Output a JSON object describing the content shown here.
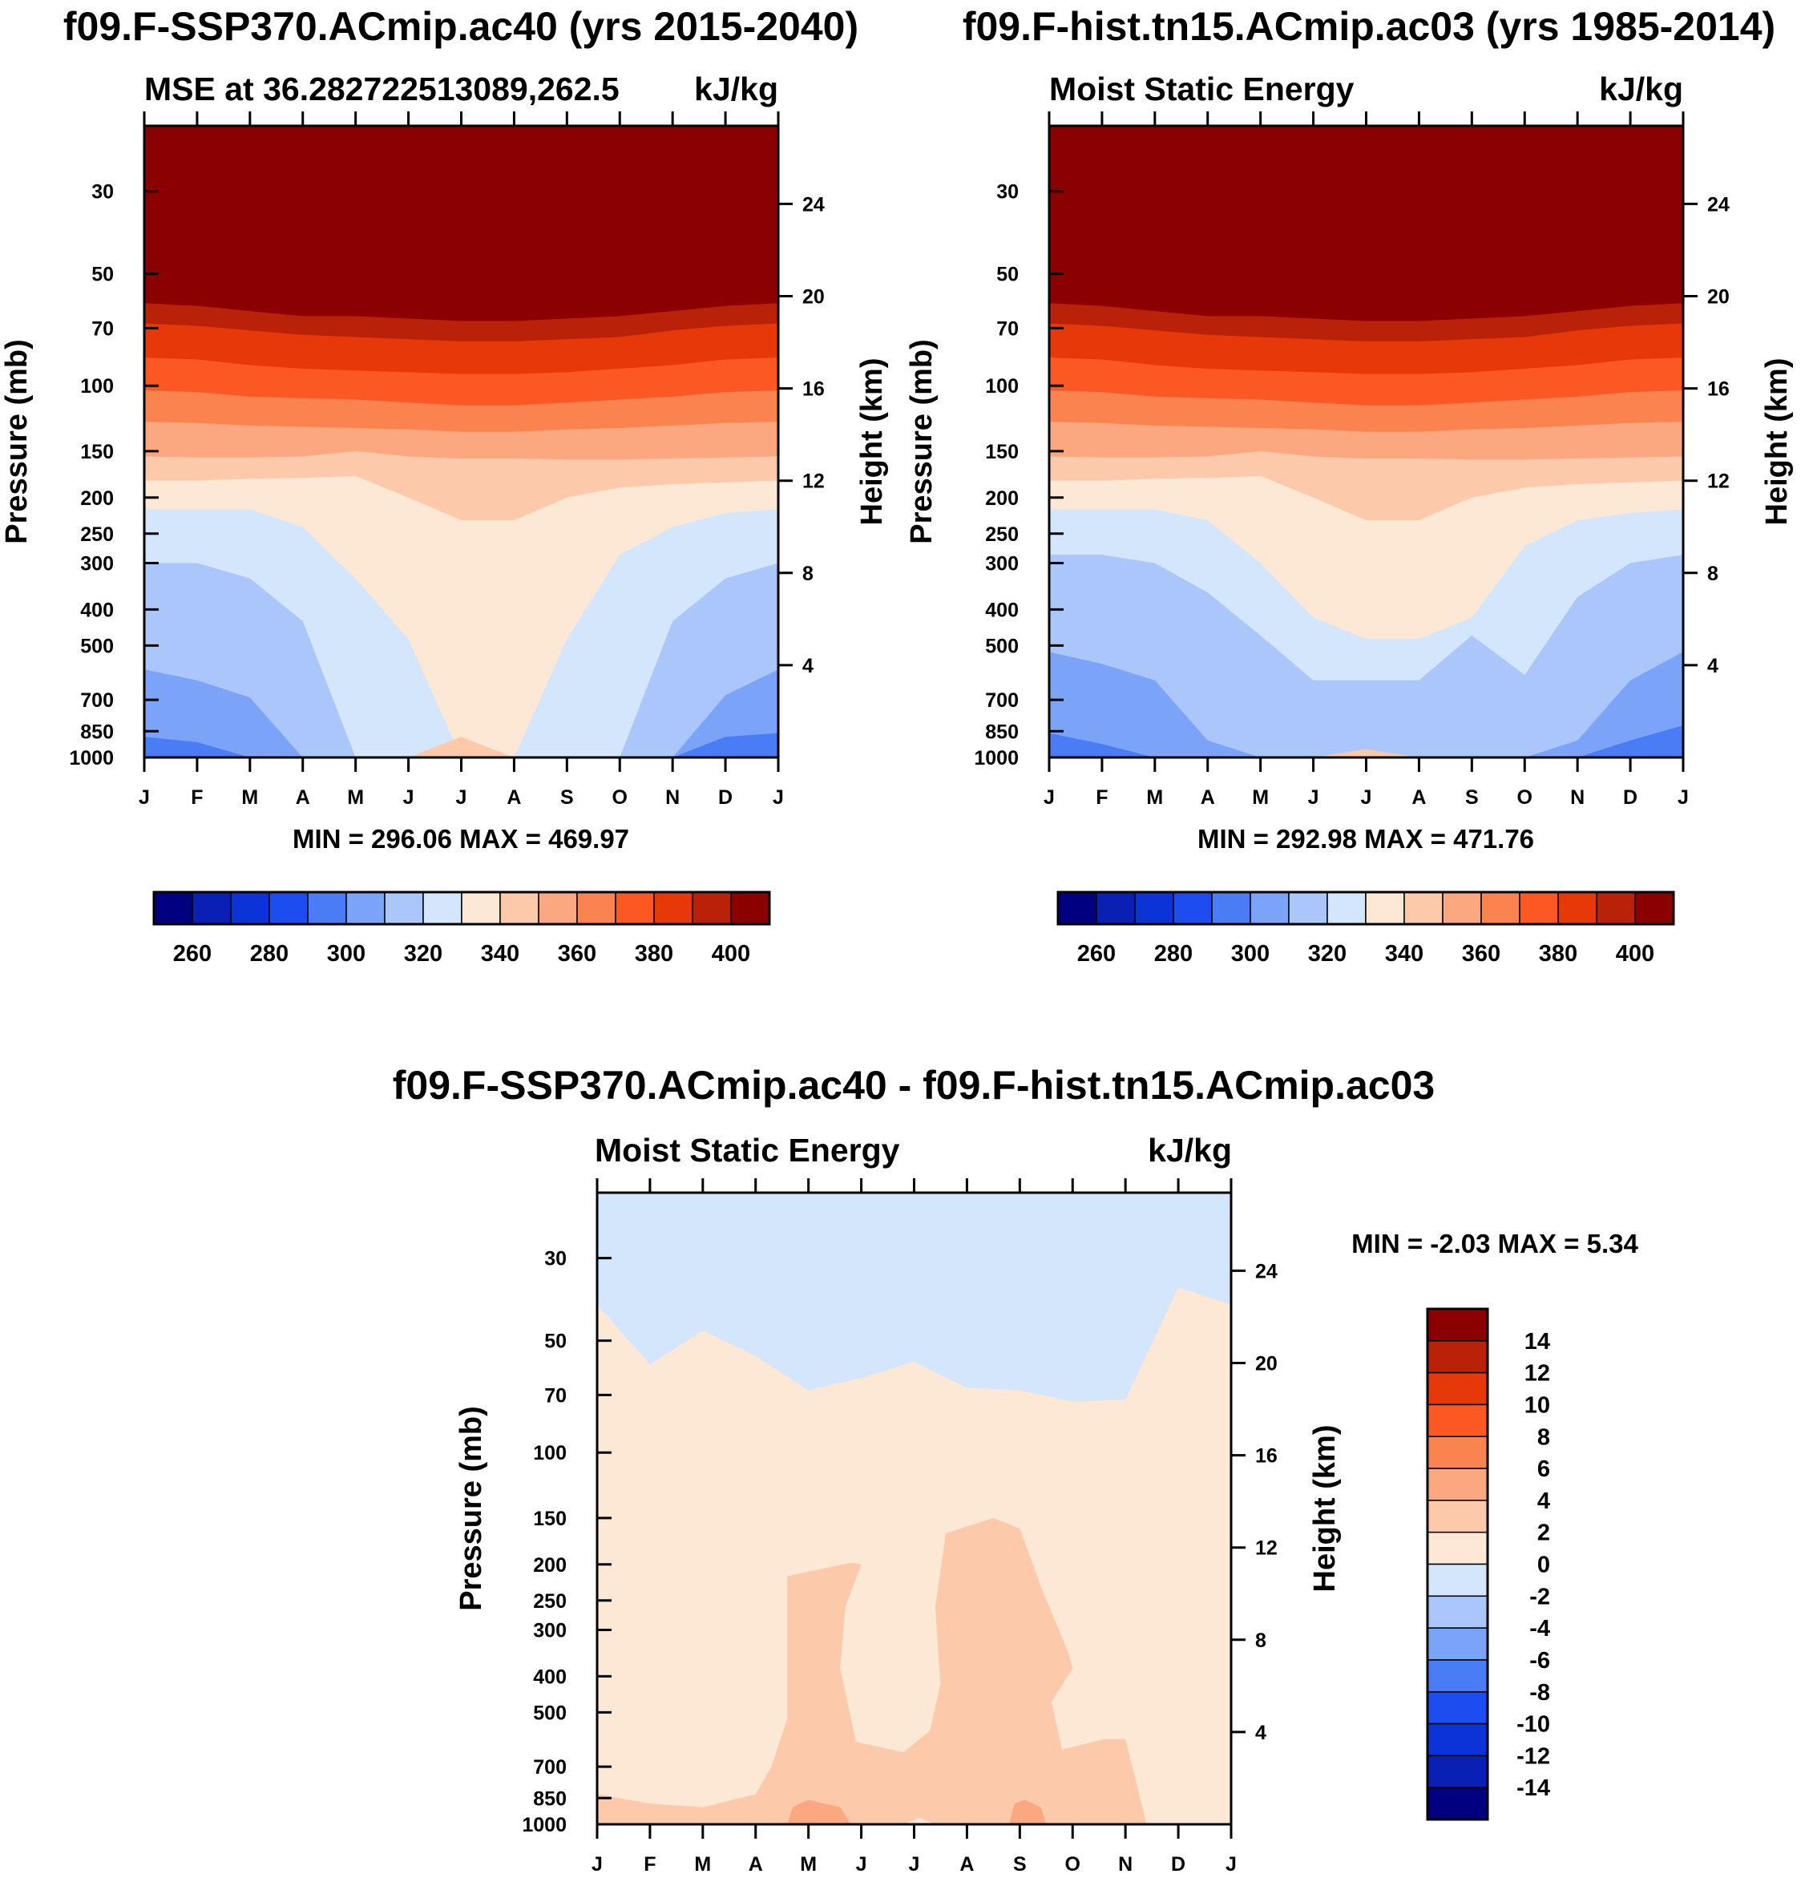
{
  "colors": {
    "negative": [
      "#000080",
      "#0a1fb4",
      "#0b33d8",
      "#1d4cf0",
      "#4a7cf5",
      "#7ba3f8",
      "#abc6fa",
      "#d4e6fb"
    ],
    "positive": [
      "#fde8d6",
      "#fccaaa",
      "#fba880",
      "#fb8350",
      "#fb5823",
      "#e63808",
      "#b92209",
      "#8b0000"
    ]
  },
  "chart_data": [
    {
      "type": "heatmap",
      "panel": "left",
      "title": "f09.F-SSP370.ACmip.ac40 (yrs 2015-2040)",
      "subtitle_left": "MSE at 36.282722513089,262.5",
      "subtitle_right": "kJ/kg",
      "xlabel": "",
      "ylabel": "Pressure (mb)",
      "ylabel_right": "Height (km)",
      "x_ticks": [
        "J",
        "F",
        "M",
        "A",
        "M",
        "J",
        "J",
        "A",
        "S",
        "O",
        "N",
        "D",
        "J"
      ],
      "y_ticks": [
        30,
        50,
        70,
        100,
        150,
        200,
        250,
        300,
        400,
        500,
        700,
        850,
        1000
      ],
      "y_range_mb": [
        20,
        1000
      ],
      "y_scale": "log",
      "height_ticks_km": [
        24,
        20,
        16,
        12,
        8,
        4
      ],
      "minmax_text": "MIN = 296.06 MAX = 469.97",
      "min": 296.06,
      "max": 469.97,
      "contour_levels": [
        260,
        270,
        280,
        290,
        300,
        310,
        320,
        330,
        340,
        350,
        360,
        370,
        380,
        390,
        400
      ],
      "levels_kJ_per_kg": {
        "above_400_top_mb": [
          60,
          61,
          63,
          65,
          65,
          66,
          67,
          67,
          66,
          65,
          63,
          61,
          60
        ],
        "390_400_top_mb": [
          68,
          69,
          71,
          73,
          74,
          75,
          76,
          76,
          75,
          74,
          71,
          69,
          68
        ],
        "380_390_top_mb": [
          84,
          85,
          88,
          90,
          91,
          92,
          93,
          93,
          92,
          90,
          88,
          85,
          84
        ],
        "370_380_top_mb": [
          103,
          104,
          107,
          108,
          109,
          111,
          113,
          113,
          111,
          109,
          107,
          104,
          103
        ],
        "360_370_top_mb": [
          125,
          126,
          128,
          129,
          130,
          131,
          133,
          133,
          131,
          130,
          128,
          126,
          125
        ],
        "350_360_top_mb": [
          155,
          156,
          156,
          155,
          150,
          155,
          157,
          157,
          158,
          158,
          157,
          156,
          155
        ],
        "340_350_top_mb": [
          180,
          180,
          178,
          177,
          175,
          200,
          230,
          230,
          200,
          188,
          184,
          182,
          180
        ],
        "330_340_top_mb": [
          215,
          215,
          215,
          240,
          330,
          480,
          1000,
          1000,
          480,
          285,
          240,
          220,
          215
        ],
        "320_330_top_mb": [
          300,
          300,
          330,
          430,
          1000,
          1000,
          1000,
          1000,
          1000,
          1000,
          430,
          330,
          300
        ],
        "310_320_top_mb": [
          580,
          620,
          690,
          1000,
          1000,
          1000,
          1000,
          1000,
          1000,
          1000,
          1000,
          680,
          580
        ],
        "300_310_top_mb": [
          880,
          910,
          1000,
          1000,
          1000,
          1000,
          1000,
          1000,
          1000,
          1000,
          1000,
          880,
          860
        ],
        "350_360_bottom_patch_mb": [
          1000,
          1000,
          1000,
          1000,
          1000,
          1000,
          880,
          1000,
          1000,
          1000,
          1000,
          1000,
          1000
        ]
      },
      "colorbar": {
        "labels": [
          "260",
          "280",
          "300",
          "320",
          "340",
          "360",
          "380",
          "400"
        ]
      }
    },
    {
      "type": "heatmap",
      "panel": "right",
      "title": "f09.F-hist.tn15.ACmip.ac03 (yrs 1985-2014)",
      "subtitle_left": "Moist Static Energy",
      "subtitle_right": "kJ/kg",
      "ylabel": "Pressure (mb)",
      "ylabel_right": "Height (km)",
      "x_ticks": [
        "J",
        "F",
        "M",
        "A",
        "M",
        "J",
        "J",
        "A",
        "S",
        "O",
        "N",
        "D",
        "J"
      ],
      "y_ticks": [
        30,
        50,
        70,
        100,
        150,
        200,
        250,
        300,
        400,
        500,
        700,
        850,
        1000
      ],
      "height_ticks_km": [
        24,
        20,
        16,
        12,
        8,
        4
      ],
      "minmax_text": "MIN = 292.98 MAX = 471.76",
      "min": 292.98,
      "max": 471.76,
      "colorbar": {
        "labels": [
          "260",
          "280",
          "300",
          "320",
          "340",
          "360",
          "380",
          "400"
        ]
      }
    },
    {
      "type": "heatmap",
      "panel": "bottom",
      "title": "f09.F-SSP370.ACmip.ac40 - f09.F-hist.tn15.ACmip.ac03",
      "subtitle_left": "Moist Static Energy",
      "subtitle_right": "kJ/kg",
      "ylabel": "Pressure (mb)",
      "ylabel_right": "Height (km)",
      "x_ticks": [
        "J",
        "F",
        "M",
        "A",
        "M",
        "J",
        "J",
        "A",
        "S",
        "O",
        "N",
        "D",
        "J"
      ],
      "y_ticks": [
        30,
        50,
        70,
        100,
        150,
        200,
        250,
        300,
        400,
        500,
        700,
        850,
        1000
      ],
      "height_ticks_km": [
        24,
        20,
        16,
        12,
        8,
        4
      ],
      "minmax_text": "MIN =  -2.03 MAX =   5.34",
      "min": -2.03,
      "max": 5.34,
      "contour_levels": [
        -14,
        -12,
        -10,
        -8,
        -6,
        -4,
        -2,
        0,
        2,
        4,
        6,
        8,
        10,
        12,
        14
      ],
      "colorbar": {
        "labels": [
          "14",
          "12",
          "10",
          "8",
          "6",
          "4",
          "2",
          "0",
          "-2",
          "-4",
          "-6",
          "-8",
          "-10",
          "-12",
          "-14"
        ]
      }
    }
  ]
}
